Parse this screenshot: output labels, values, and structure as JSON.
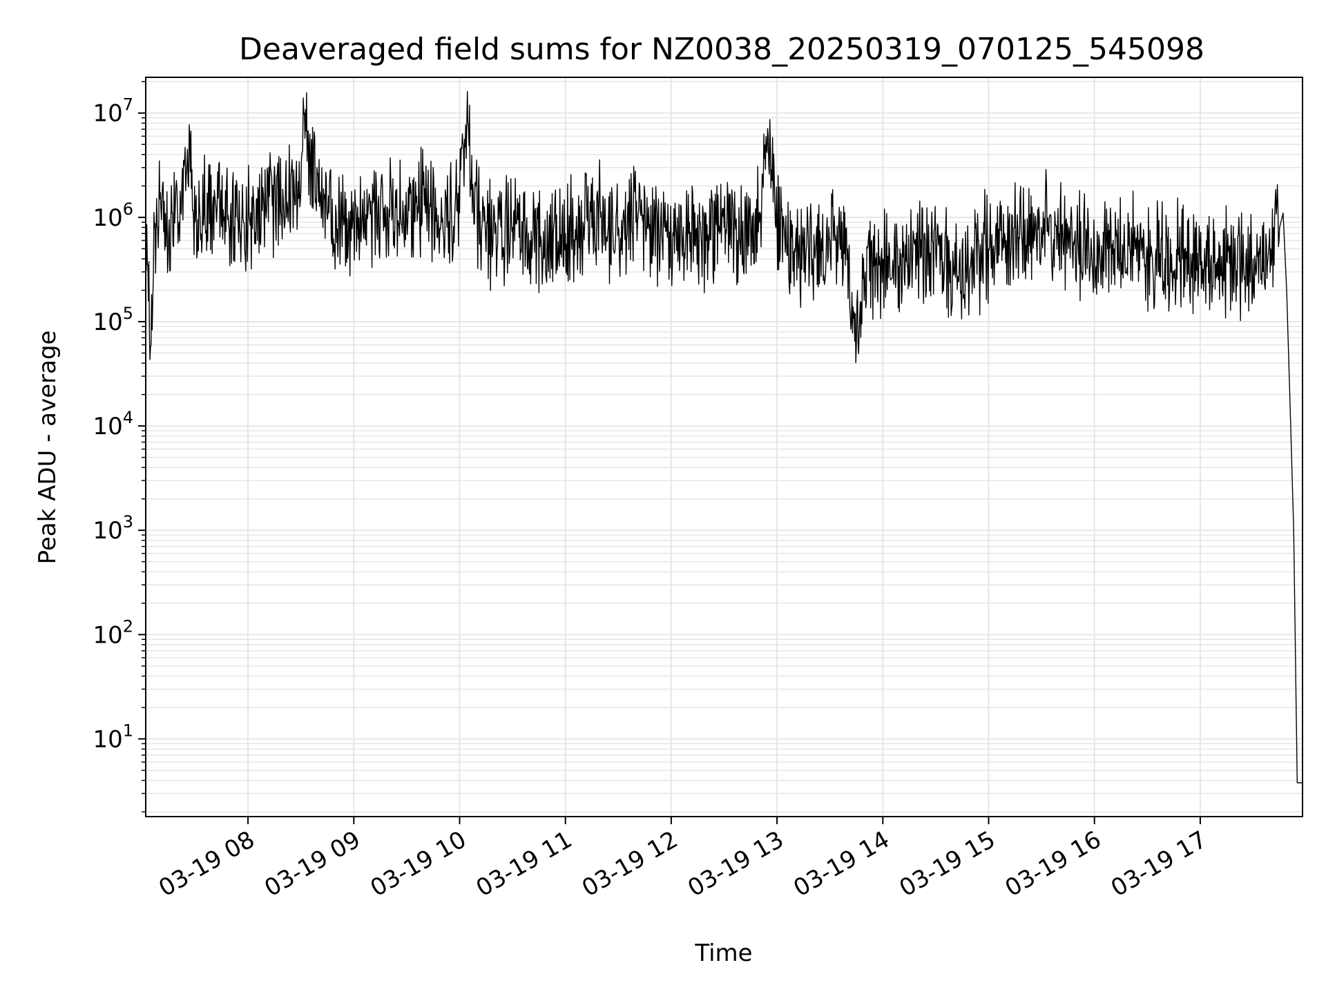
{
  "chart_data": {
    "type": "line",
    "title": "Deaveraged field sums for NZ0038_20250319_070125_545098",
    "xlabel": "Time",
    "ylabel": "Peak ADU - average",
    "yscale": "log",
    "xlim": [
      "03-19 07:02",
      "03-19 17:58"
    ],
    "ylim": [
      1.8,
      22000000
    ],
    "grid": true,
    "line_color": "#000000",
    "grid_color": "#e6e6e6",
    "x_ticks": [
      {
        "t": "03-19 08:00",
        "label": "03-19 08"
      },
      {
        "t": "03-19 09:00",
        "label": "03-19 09"
      },
      {
        "t": "03-19 10:00",
        "label": "03-19 10"
      },
      {
        "t": "03-19 11:00",
        "label": "03-19 11"
      },
      {
        "t": "03-19 12:00",
        "label": "03-19 12"
      },
      {
        "t": "03-19 13:00",
        "label": "03-19 13"
      },
      {
        "t": "03-19 14:00",
        "label": "03-19 14"
      },
      {
        "t": "03-19 15:00",
        "label": "03-19 15"
      },
      {
        "t": "03-19 16:00",
        "label": "03-19 16"
      },
      {
        "t": "03-19 17:00",
        "label": "03-19 17"
      }
    ],
    "y_ticks": [
      {
        "value": 10,
        "base": "10",
        "exp": "1"
      },
      {
        "value": 100,
        "base": "10",
        "exp": "2"
      },
      {
        "value": 1000,
        "base": "10",
        "exp": "3"
      },
      {
        "value": 10000,
        "base": "10",
        "exp": "4"
      },
      {
        "value": 100000,
        "base": "10",
        "exp": "5"
      },
      {
        "value": 1000000,
        "base": "10",
        "exp": "6"
      },
      {
        "value": 10000000,
        "base": "10",
        "exp": "7"
      }
    ],
    "series": [
      {
        "points": [
          [
            "03-19 07:02",
            600000
          ],
          [
            "03-19 07:05",
            60000
          ],
          [
            "03-19 07:07",
            800000
          ],
          [
            "03-19 07:10",
            1500000
          ],
          [
            "03-19 07:15",
            700000
          ],
          [
            "03-19 07:20",
            1200000
          ],
          [
            "03-19 07:25",
            2500000
          ],
          [
            "03-19 07:27",
            6000000
          ],
          [
            "03-19 07:30",
            900000
          ],
          [
            "03-19 07:40",
            1300000
          ],
          [
            "03-19 07:50",
            1000000
          ],
          [
            "03-19 08:00",
            900000
          ],
          [
            "03-19 08:10",
            1200000
          ],
          [
            "03-19 08:20",
            1500000
          ],
          [
            "03-19 08:30",
            1800000
          ],
          [
            "03-19 08:32",
            10000000
          ],
          [
            "03-19 08:40",
            1400000
          ],
          [
            "03-19 08:50",
            1100000
          ],
          [
            "03-19 09:00",
            800000
          ],
          [
            "03-19 09:10",
            900000
          ],
          [
            "03-19 09:20",
            1200000
          ],
          [
            "03-19 09:30",
            1000000
          ],
          [
            "03-19 09:40",
            1300000
          ],
          [
            "03-19 09:50",
            900000
          ],
          [
            "03-19 10:00",
            1100000
          ],
          [
            "03-19 10:05",
            7500000
          ],
          [
            "03-19 10:10",
            1000000
          ],
          [
            "03-19 10:20",
            700000
          ],
          [
            "03-19 10:30",
            800000
          ],
          [
            "03-19 10:40",
            600000
          ],
          [
            "03-19 10:50",
            500000
          ],
          [
            "03-19 11:00",
            700000
          ],
          [
            "03-19 11:10",
            900000
          ],
          [
            "03-19 11:20",
            1000000
          ],
          [
            "03-19 11:30",
            800000
          ],
          [
            "03-19 11:40",
            900000
          ],
          [
            "03-19 11:50",
            700000
          ],
          [
            "03-19 12:00",
            600000
          ],
          [
            "03-19 12:10",
            700000
          ],
          [
            "03-19 12:20",
            600000
          ],
          [
            "03-19 12:30",
            800000
          ],
          [
            "03-19 12:40",
            700000
          ],
          [
            "03-19 12:50",
            900000
          ],
          [
            "03-19 12:55",
            6000000
          ],
          [
            "03-19 13:00",
            800000
          ],
          [
            "03-19 13:10",
            500000
          ],
          [
            "03-19 13:20",
            400000
          ],
          [
            "03-19 13:30",
            600000
          ],
          [
            "03-19 13:40",
            500000
          ],
          [
            "03-19 13:45",
            60000
          ],
          [
            "03-19 13:50",
            300000
          ],
          [
            "03-19 14:00",
            400000
          ],
          [
            "03-19 14:10",
            350000
          ],
          [
            "03-19 14:20",
            400000
          ],
          [
            "03-19 14:30",
            450000
          ],
          [
            "03-19 14:40",
            350000
          ],
          [
            "03-19 14:50",
            400000
          ],
          [
            "03-19 15:00",
            500000
          ],
          [
            "03-19 15:10",
            600000
          ],
          [
            "03-19 15:20",
            700000
          ],
          [
            "03-19 15:30",
            800000
          ],
          [
            "03-19 15:40",
            700000
          ],
          [
            "03-19 15:50",
            600000
          ],
          [
            "03-19 16:00",
            500000
          ],
          [
            "03-19 16:10",
            550000
          ],
          [
            "03-19 16:20",
            500000
          ],
          [
            "03-19 16:30",
            450000
          ],
          [
            "03-19 16:40",
            400000
          ],
          [
            "03-19 16:50",
            400000
          ],
          [
            "03-19 17:00",
            350000
          ],
          [
            "03-19 17:10",
            400000
          ],
          [
            "03-19 17:20",
            350000
          ],
          [
            "03-19 17:30",
            400000
          ],
          [
            "03-19 17:40",
            500000
          ],
          [
            "03-19 17:45",
            800000
          ],
          [
            "03-19 17:47",
            1100000
          ],
          [
            "03-19 17:49",
            200000
          ],
          [
            "03-19 17:51",
            15000
          ],
          [
            "03-19 17:53",
            1000
          ],
          [
            "03-19 17:55",
            3.8
          ],
          [
            "03-19 17:58",
            3.8
          ]
        ]
      }
    ]
  }
}
